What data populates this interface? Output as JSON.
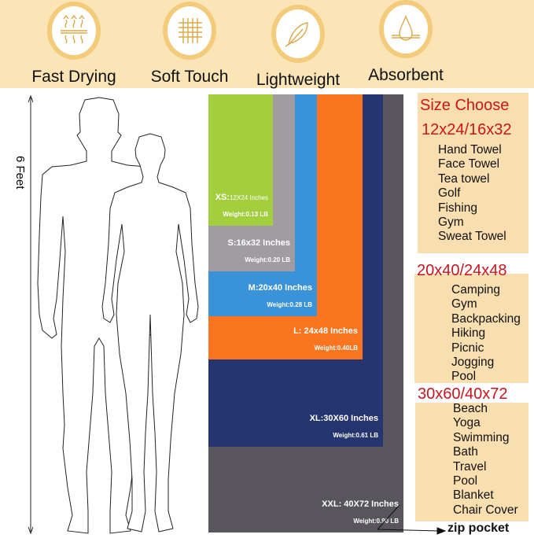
{
  "features": [
    {
      "label": "Fast Drying",
      "icon": "heat-waves-icon"
    },
    {
      "label": "Soft Touch",
      "icon": "fabric-weave-icon"
    },
    {
      "label": "Lightweight",
      "icon": "feather-icon"
    },
    {
      "label": "Absorbent",
      "icon": "water-drop-icon"
    }
  ],
  "height_label": "6 Feet",
  "sizes": [
    {
      "name": "XS:",
      "dims": "12X24 Inches",
      "weight": "Weight:0.13 LB",
      "color": "#a3cf3e"
    },
    {
      "name": "S:16x32 Inches",
      "dims": "",
      "weight": "Weight:0.20 LB",
      "color": "#a09ca1"
    },
    {
      "name": "M:20x40 Inches",
      "dims": "",
      "weight": "Weight:0.28 LB",
      "color": "#3a93d8"
    },
    {
      "name": "L: 24x48 Inches",
      "dims": "",
      "weight": "Weight:0.40LB",
      "color": "#fb7521"
    },
    {
      "name": "XL:30X60 Inches",
      "dims": "",
      "weight": "Weight:0.61 LB",
      "color": "#253570"
    },
    {
      "name": "XXL: 40X72 Inches",
      "dims": "",
      "weight": "Weight:0.90 LB",
      "color": "#58555c"
    }
  ],
  "size_choose": {
    "title": "Size Choose",
    "groups": [
      {
        "heading": "12x24/16x32",
        "uses": [
          "Hand Towel",
          "Face Towel",
          "Tea towel",
          "Golf",
          "Fishing",
          "Gym",
          "Sweat Towel"
        ]
      },
      {
        "heading": "20x40/24x48",
        "uses": [
          "Camping",
          "Gym",
          "Backpacking",
          "Hiking",
          "Picnic",
          "Jogging",
          "Pool"
        ]
      },
      {
        "heading": "30x60/40x72",
        "uses": [
          "Beach",
          "Yoga",
          "Swimming",
          "Bath",
          "Travel",
          "Pool",
          "Blanket",
          "Chair Cover"
        ]
      }
    ]
  },
  "zip_label": "zip pocket"
}
